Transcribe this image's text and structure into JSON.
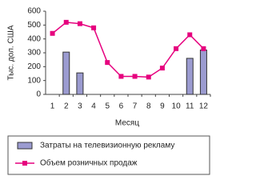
{
  "chart_data": {
    "type": "combo",
    "y_label": "Тыс. дол. США",
    "x_label": "Месяц",
    "categories": [
      "1",
      "2",
      "3",
      "4",
      "5",
      "6",
      "7",
      "8",
      "9",
      "10",
      "11",
      "12"
    ],
    "ylim": [
      0,
      600
    ],
    "yticks": [
      0,
      100,
      200,
      300,
      400,
      500,
      600
    ],
    "series": [
      {
        "name": "Затраты на телевизионную рекламу",
        "type": "bar",
        "color": "#9b9bd0",
        "values": [
          null,
          305,
          155,
          null,
          null,
          null,
          null,
          null,
          null,
          null,
          260,
          320
        ]
      },
      {
        "name": "Объем розничных продаж",
        "type": "line",
        "color": "#e6007e",
        "values": [
          440,
          520,
          510,
          480,
          230,
          130,
          130,
          125,
          190,
          330,
          430,
          330
        ]
      }
    ]
  }
}
